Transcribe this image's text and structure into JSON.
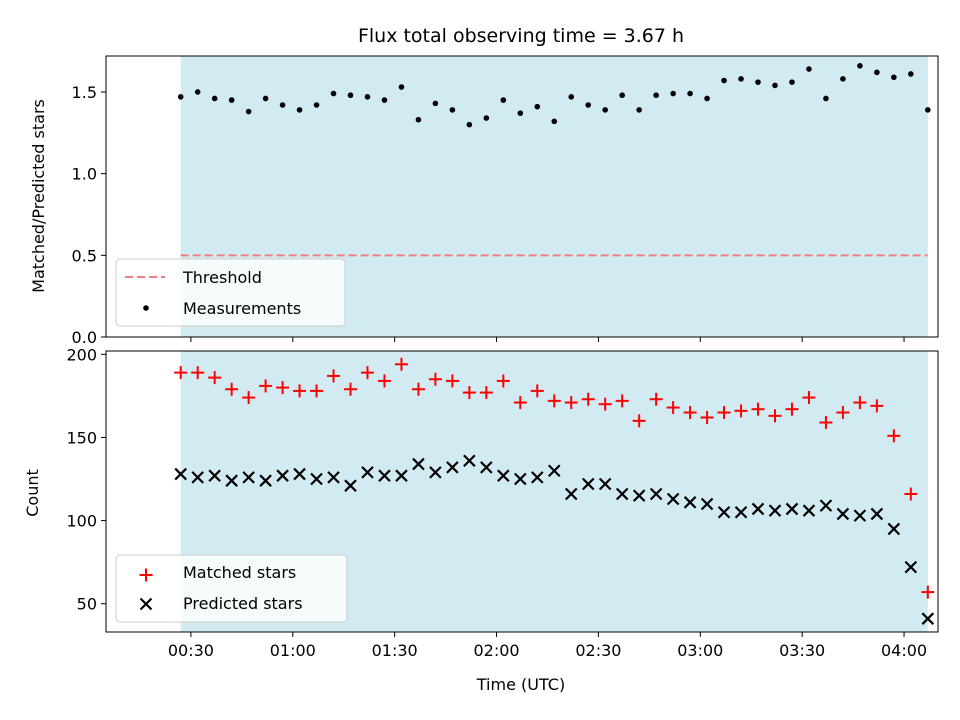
{
  "title": "Flux total observing time = 3.67 h",
  "colors": {
    "band": "#add8e6",
    "threshold": "#f08080",
    "measurement": "#000000",
    "matched": "#ff0000",
    "predicted": "#000000"
  },
  "chart_data": [
    {
      "type": "scatter",
      "panel": "top",
      "ylabel": "Matched/Predicted stars",
      "ylim": [
        0,
        1.72
      ],
      "yticks": [
        "0.0",
        "0.5",
        "1.0",
        "1.5"
      ],
      "x_unit": "minutes since 00:00 UTC",
      "x_range_shaded": [
        "00:27",
        "04:07"
      ],
      "threshold": 0.5,
      "legend": {
        "placement": "lower-left",
        "entries": [
          "Threshold",
          "Measurements"
        ]
      },
      "series": [
        {
          "name": "Measurements",
          "marker": "dot",
          "x": [
            27,
            32,
            37,
            42,
            47,
            52,
            57,
            62,
            67,
            72,
            77,
            82,
            87,
            92,
            97,
            102,
            107,
            112,
            117,
            122,
            127,
            132,
            137,
            142,
            147,
            152,
            157,
            162,
            167,
            172,
            177,
            182,
            187,
            192,
            197,
            202,
            207,
            212,
            217,
            222,
            227,
            232,
            237,
            242,
            247
          ],
          "y": [
            1.47,
            1.5,
            1.46,
            1.45,
            1.38,
            1.46,
            1.42,
            1.39,
            1.42,
            1.49,
            1.48,
            1.47,
            1.45,
            1.53,
            1.33,
            1.43,
            1.39,
            1.3,
            1.34,
            1.45,
            1.37,
            1.41,
            1.32,
            1.47,
            1.42,
            1.39,
            1.48,
            1.39,
            1.48,
            1.49,
            1.49,
            1.46,
            1.57,
            1.58,
            1.56,
            1.54,
            1.56,
            1.64,
            1.46,
            1.58,
            1.66,
            1.62,
            1.59,
            1.61,
            1.39
          ]
        }
      ]
    },
    {
      "type": "scatter",
      "panel": "bottom",
      "xlabel": "Time (UTC)",
      "ylabel": "Count",
      "ylim": [
        33,
        202
      ],
      "yticks": [
        "50",
        "100",
        "150",
        "200"
      ],
      "xlim": [
        5,
        250
      ],
      "xticks": [
        "00:30",
        "01:00",
        "01:30",
        "02:00",
        "02:30",
        "03:00",
        "03:30",
        "04:00"
      ],
      "legend": {
        "placement": "lower-left",
        "entries": [
          "Matched stars",
          "Predicted stars"
        ]
      },
      "series": [
        {
          "name": "Matched stars",
          "marker": "plus",
          "x": [
            27,
            32,
            37,
            42,
            47,
            52,
            57,
            62,
            67,
            72,
            77,
            82,
            87,
            92,
            97,
            102,
            107,
            112,
            117,
            122,
            127,
            132,
            137,
            142,
            147,
            152,
            157,
            162,
            167,
            172,
            177,
            182,
            187,
            192,
            197,
            202,
            207,
            212,
            217,
            222,
            227,
            232,
            237,
            242,
            247
          ],
          "y": [
            189,
            189,
            186,
            179,
            174,
            181,
            180,
            178,
            178,
            187,
            179,
            189,
            184,
            194,
            179,
            185,
            184,
            177,
            177,
            184,
            171,
            178,
            172,
            171,
            173,
            170,
            172,
            160,
            173,
            168,
            165,
            162,
            165,
            166,
            167,
            163,
            167,
            174,
            159,
            165,
            171,
            169,
            151,
            116,
            57
          ]
        },
        {
          "name": "Predicted stars",
          "marker": "x",
          "x": [
            27,
            32,
            37,
            42,
            47,
            52,
            57,
            62,
            67,
            72,
            77,
            82,
            87,
            92,
            97,
            102,
            107,
            112,
            117,
            122,
            127,
            132,
            137,
            142,
            147,
            152,
            157,
            162,
            167,
            172,
            177,
            182,
            187,
            192,
            197,
            202,
            207,
            212,
            217,
            222,
            227,
            232,
            237,
            242,
            247
          ],
          "y": [
            128,
            126,
            127,
            124,
            126,
            124,
            127,
            128,
            125,
            126,
            121,
            129,
            127,
            127,
            134,
            129,
            132,
            136,
            132,
            127,
            125,
            126,
            130,
            116,
            122,
            122,
            116,
            115,
            116,
            113,
            111,
            110,
            105,
            105,
            107,
            106,
            107,
            106,
            109,
            104,
            103,
            104,
            95,
            72,
            41
          ]
        }
      ]
    }
  ]
}
